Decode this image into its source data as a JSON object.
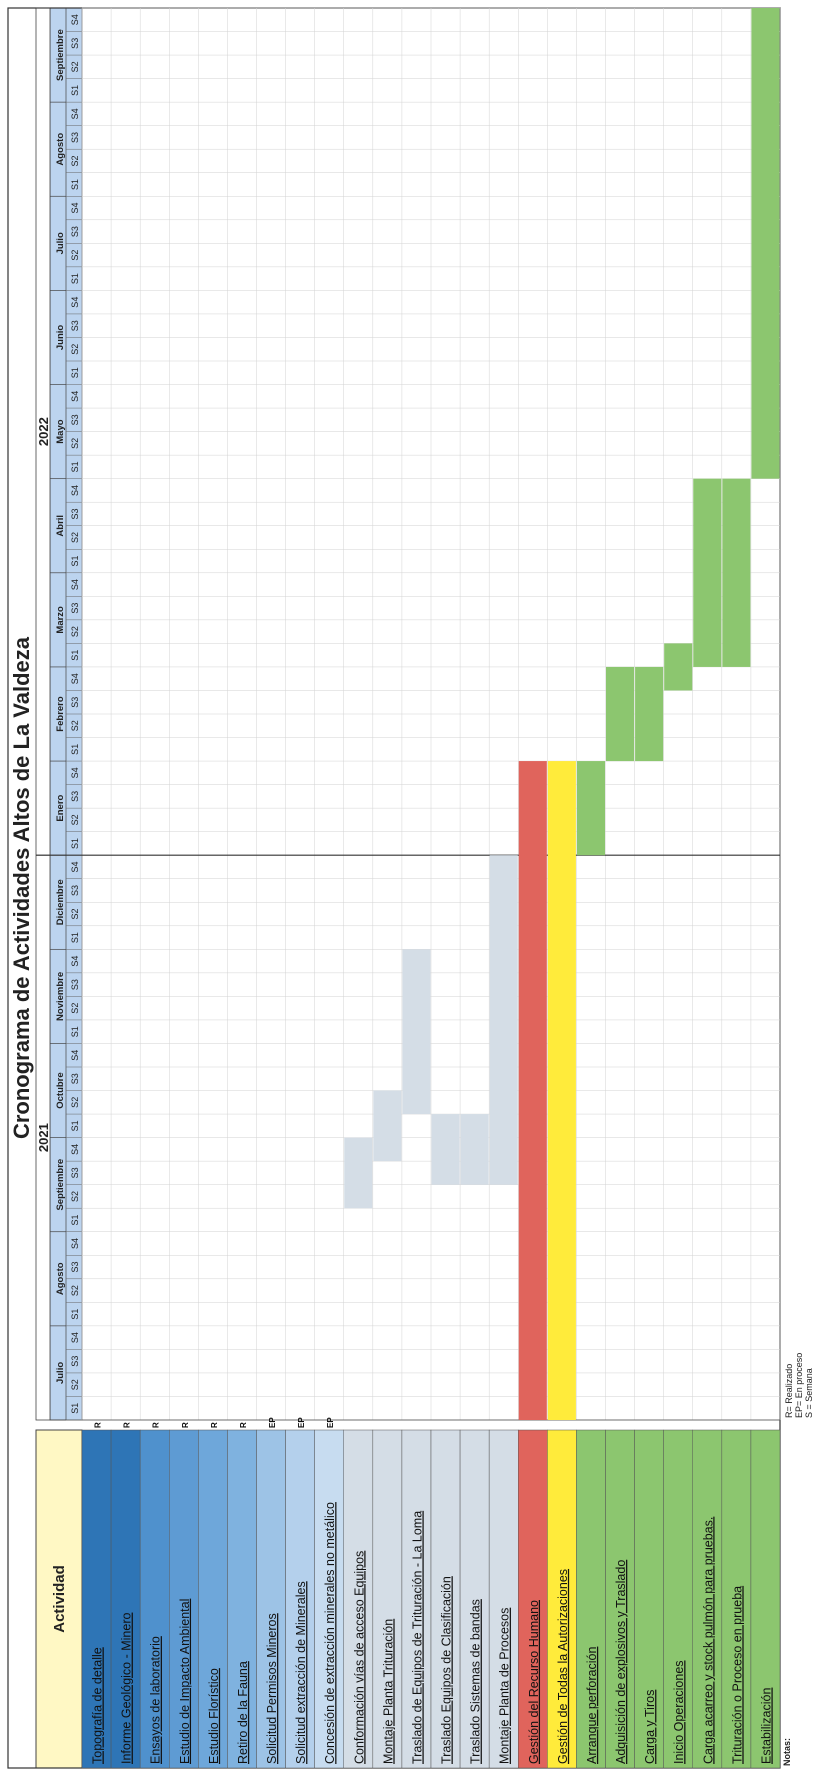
{
  "chart_data": {
    "type": "gantt",
    "title": "Cronograma de Actividades Altos de La Valdeza",
    "activity_header": "Actividad",
    "week_labels": [
      "S1",
      "S2",
      "S3",
      "S4"
    ],
    "years": [
      {
        "label": "2021",
        "months": [
          "Julio",
          "Agosto",
          "Septiembre",
          "Octubre",
          "Noviembre",
          "Diciembre"
        ]
      },
      {
        "label": "2022",
        "months": [
          "Enero",
          "Febrero",
          "Marzo",
          "Abril",
          "Mayo",
          "Junio",
          "Julio",
          "Agosto",
          "Septiembre"
        ]
      }
    ],
    "tasks": [
      {
        "name": "Topografía de detalle",
        "status": "R",
        "color": "#2e75b6"
      },
      {
        "name": "Informe Geológico - Minero",
        "status": "R",
        "color": "#2e75b6"
      },
      {
        "name": "Ensayos de laboratorio",
        "status": "R",
        "color": "#4f91cd"
      },
      {
        "name": "Estudio de Impacto Ambiental",
        "status": "R",
        "color": "#5e9bd3"
      },
      {
        "name": "Estudio Florístico",
        "status": "R",
        "color": "#6ea7da"
      },
      {
        "name": "Retiro de la Fauna",
        "status": "R",
        "color": "#7fb2df"
      },
      {
        "name": "Solicitud Permisos Mineros",
        "status": "EP",
        "color": "#9dc3e6"
      },
      {
        "name": "Solicitud extracción de Minerales",
        "status": "EP",
        "color": "#b4d0ec"
      },
      {
        "name": "Concesión de extracción minerales no metálico",
        "status": "EP",
        "color": "#c7dcf0"
      },
      {
        "name": "Conformación vías de acceso Equipos",
        "status": "",
        "color": "#d4dde6",
        "start": "2021-09-S2",
        "end": "2021-09-S4",
        "bar_color": "#d4dde6"
      },
      {
        "name": "Montaje Planta Trituración",
        "status": "",
        "color": "#d4dde6",
        "start": "2021-09-S4",
        "end": "2021-10-S2",
        "bar_color": "#d4dde6"
      },
      {
        "name": "Traslado de Equipos de Trituración - La Loma",
        "status": "",
        "color": "#d4dde6",
        "start": "2021-10-S2",
        "end": "2021-11-S4",
        "bar_color": "#d4dde6"
      },
      {
        "name": "Traslado Equipos de Clasificación",
        "status": "",
        "color": "#d4dde6",
        "start": "2021-09-S3",
        "end": "2021-10-S1",
        "bar_color": "#d4dde6"
      },
      {
        "name": "Traslado Sistemas de bandas",
        "status": "",
        "color": "#d4dde6",
        "start": "2021-09-S3",
        "end": "2021-10-S1",
        "bar_color": "#d4dde6"
      },
      {
        "name": "Montaje Planta de Procesos",
        "status": "",
        "color": "#d4dde6",
        "start": "2021-09-S3",
        "end": "2021-12-S4",
        "bar_color": "#d4dde6"
      },
      {
        "name": "Gestión del Recurso Humano",
        "status": "",
        "color": "#e0645c",
        "start": "2021-07-S1",
        "end": "2022-01-S4",
        "bar_color": "#e0645c"
      },
      {
        "name": "Gestión de Todas la Autorizaciones",
        "status": "",
        "color": "#ffeb3b",
        "start": "2021-07-S1",
        "end": "2022-01-S4",
        "bar_color": "#ffeb3b"
      },
      {
        "name": "Arranque perforación",
        "status": "",
        "color": "#8cc66f",
        "start": "2022-01-S1",
        "end": "2022-01-S4",
        "bar_color": "#8cc66f"
      },
      {
        "name": "Adquisición de explosivos y Traslado",
        "status": "",
        "color": "#8cc66f",
        "start": "2022-02-S1",
        "end": "2022-02-S4",
        "bar_color": "#8cc66f"
      },
      {
        "name": "Carga y Tiros",
        "status": "",
        "color": "#8cc66f",
        "start": "2022-02-S1",
        "end": "2022-02-S4",
        "bar_color": "#8cc66f"
      },
      {
        "name": "Inicio Operaciones",
        "status": "",
        "color": "#8cc66f",
        "start": "2022-02-S4",
        "end": "2022-03-S1",
        "bar_color": "#8cc66f"
      },
      {
        "name": "Carga acarreo y stock pulmón para pruebas.",
        "status": "",
        "color": "#8cc66f",
        "start": "2022-03-S1",
        "end": "2022-04-S4",
        "bar_color": "#8cc66f"
      },
      {
        "name": "Trituración o Proceso en prueba",
        "status": "",
        "color": "#8cc66f",
        "start": "2022-03-S1",
        "end": "2022-04-S4",
        "bar_color": "#8cc66f"
      },
      {
        "name": "Estabilización",
        "status": "",
        "color": "#8cc66f",
        "start": "2022-05-S1",
        "end": "2022-09-S4",
        "bar_color": "#8cc66f"
      }
    ],
    "notes_label": "Notas:",
    "notes": [
      "R= Realizado",
      "EP= En proceso",
      "S = Semana"
    ]
  }
}
